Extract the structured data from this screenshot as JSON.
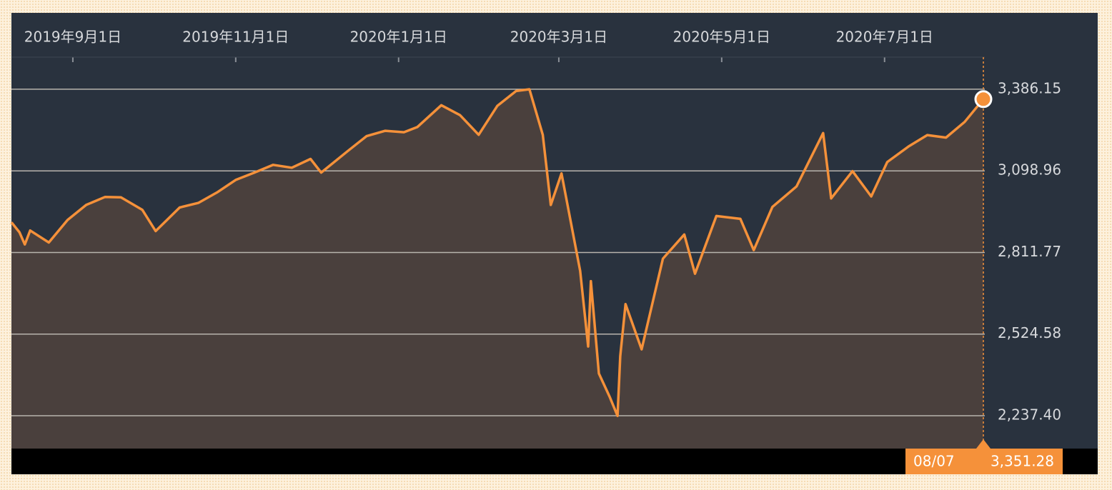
{
  "chart_data": {
    "type": "area",
    "x": [
      "2019-08-09",
      "2019-08-12",
      "2019-08-14",
      "2019-08-16",
      "2019-08-23",
      "2019-08-30",
      "2019-09-06",
      "2019-09-13",
      "2019-09-19",
      "2019-09-27",
      "2019-10-02",
      "2019-10-11",
      "2019-10-18",
      "2019-10-25",
      "2019-11-01",
      "2019-11-08",
      "2019-11-15",
      "2019-11-22",
      "2019-11-29",
      "2019-12-03",
      "2019-12-13",
      "2019-12-20",
      "2019-12-27",
      "2020-01-03",
      "2020-01-08",
      "2020-01-17",
      "2020-01-24",
      "2020-01-31",
      "2020-02-07",
      "2020-02-14",
      "2020-02-19",
      "2020-02-24",
      "2020-02-27",
      "2020-03-02",
      "2020-03-09",
      "2020-03-12",
      "2020-03-13",
      "2020-03-16",
      "2020-03-20",
      "2020-03-23",
      "2020-03-24",
      "2020-03-26",
      "2020-04-01",
      "2020-04-09",
      "2020-04-17",
      "2020-04-21",
      "2020-04-29",
      "2020-05-08",
      "2020-05-13",
      "2020-05-20",
      "2020-05-29",
      "2020-06-08",
      "2020-06-11",
      "2020-06-19",
      "2020-06-26",
      "2020-07-02",
      "2020-07-10",
      "2020-07-17",
      "2020-07-24",
      "2020-07-31",
      "2020-08-07"
    ],
    "values": [
      2918,
      2883,
      2840,
      2889,
      2847,
      2926,
      2979,
      3007,
      3006,
      2962,
      2887,
      2970,
      2986,
      3023,
      3067,
      3093,
      3120,
      3110,
      3141,
      3093,
      3169,
      3221,
      3240,
      3235,
      3253,
      3330,
      3295,
      3226,
      3328,
      3380,
      3386,
      3226,
      2979,
      3090,
      2747,
      2481,
      2711,
      2386,
      2305,
      2237,
      2447,
      2630,
      2471,
      2790,
      2875,
      2737,
      2940,
      2930,
      2820,
      2972,
      3044,
      3232,
      3002,
      3098,
      3009,
      3130,
      3185,
      3225,
      3216,
      3271,
      3351.28
    ],
    "color": "#f5913a",
    "xlim": [
      "2019-08-09",
      "2020-08-07"
    ],
    "xticks": [
      {
        "value": "2019-09-01",
        "label": "2019年9月1日"
      },
      {
        "value": "2019-11-01",
        "label": "2019年11月1日"
      },
      {
        "value": "2020-01-01",
        "label": "2020年1月1日"
      },
      {
        "value": "2020-03-01",
        "label": "2020年3月1日"
      },
      {
        "value": "2020-05-01",
        "label": "2020年5月1日"
      },
      {
        "value": "2020-07-01",
        "label": "2020年7月1日"
      }
    ],
    "ylim": [
      2121.8,
      3654.9
    ],
    "yticks": [
      {
        "value": 3386.15,
        "label": "3,386.15"
      },
      {
        "value": 3098.96,
        "label": "3,098.96"
      },
      {
        "value": 2811.77,
        "label": "2,811.77"
      },
      {
        "value": 2524.58,
        "label": "2,524.58"
      },
      {
        "value": 2237.4,
        "label": "2,237.40"
      }
    ],
    "grid": true,
    "tooltip": {
      "date_label": "08/07",
      "value_label": "3,351.28"
    }
  }
}
